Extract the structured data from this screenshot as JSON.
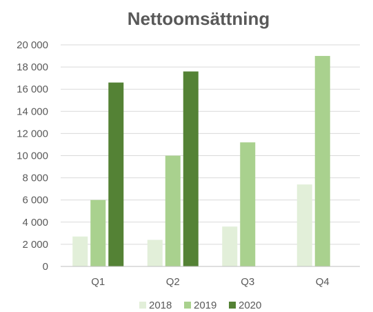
{
  "chart_data": {
    "type": "bar",
    "title": "Nettoomsättning",
    "xlabel": "",
    "ylabel": "",
    "categories": [
      "Q1",
      "Q2",
      "Q3",
      "Q4"
    ],
    "series": [
      {
        "name": "2018",
        "color": "#e2efd9",
        "values": [
          2700,
          2400,
          3600,
          7400
        ]
      },
      {
        "name": "2019",
        "color": "#a9d18e",
        "values": [
          6000,
          10000,
          11200,
          19000
        ]
      },
      {
        "name": "2020",
        "color": "#548235",
        "values": [
          16600,
          17600,
          0,
          0
        ]
      }
    ],
    "ylim": [
      0,
      20000
    ],
    "yticks": [
      0,
      2000,
      4000,
      6000,
      8000,
      10000,
      12000,
      14000,
      16000,
      18000,
      20000
    ],
    "ytick_labels": [
      "0",
      "2 000",
      "4 000",
      "6 000",
      "8 000",
      "10 000",
      "12 000",
      "14 000",
      "16 000",
      "18 000",
      "20 000"
    ],
    "grid": true,
    "legend_position": "bottom"
  }
}
